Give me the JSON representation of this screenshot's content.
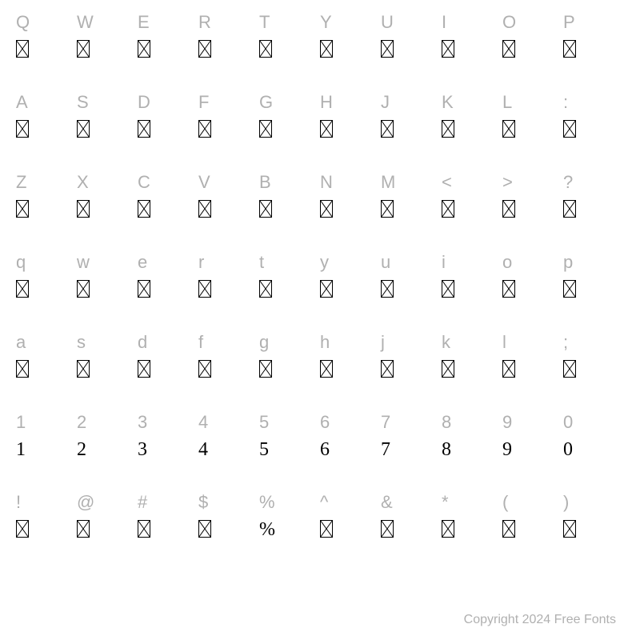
{
  "background_color": "#ffffff",
  "label_color": "#b0b0b0",
  "glyph_color": "#000000",
  "label_fontsize": 22,
  "glyph_fontsize": 24,
  "notdef_width": 16,
  "notdef_height": 22,
  "notdef_stroke": "#000000",
  "notdef_stroke_width": 1,
  "columns": 10,
  "rows": [
    [
      {
        "label": "Q",
        "glyph": null
      },
      {
        "label": "W",
        "glyph": null
      },
      {
        "label": "E",
        "glyph": null
      },
      {
        "label": "R",
        "glyph": null
      },
      {
        "label": "T",
        "glyph": null
      },
      {
        "label": "Y",
        "glyph": null
      },
      {
        "label": "U",
        "glyph": null
      },
      {
        "label": "I",
        "glyph": null
      },
      {
        "label": "O",
        "glyph": null
      },
      {
        "label": "P",
        "glyph": null
      }
    ],
    [
      {
        "label": "A",
        "glyph": null
      },
      {
        "label": "S",
        "glyph": null
      },
      {
        "label": "D",
        "glyph": null
      },
      {
        "label": "F",
        "glyph": null
      },
      {
        "label": "G",
        "glyph": null
      },
      {
        "label": "H",
        "glyph": null
      },
      {
        "label": "J",
        "glyph": null
      },
      {
        "label": "K",
        "glyph": null
      },
      {
        "label": "L",
        "glyph": null
      },
      {
        "label": ":",
        "glyph": null
      }
    ],
    [
      {
        "label": "Z",
        "glyph": null
      },
      {
        "label": "X",
        "glyph": null
      },
      {
        "label": "C",
        "glyph": null
      },
      {
        "label": "V",
        "glyph": null
      },
      {
        "label": "B",
        "glyph": null
      },
      {
        "label": "N",
        "glyph": null
      },
      {
        "label": "M",
        "glyph": null
      },
      {
        "label": "<",
        "glyph": null
      },
      {
        "label": ">",
        "glyph": null
      },
      {
        "label": "?",
        "glyph": null
      }
    ],
    [
      {
        "label": "q",
        "glyph": null
      },
      {
        "label": "w",
        "glyph": null
      },
      {
        "label": "e",
        "glyph": null
      },
      {
        "label": "r",
        "glyph": null
      },
      {
        "label": "t",
        "glyph": null
      },
      {
        "label": "y",
        "glyph": null
      },
      {
        "label": "u",
        "glyph": null
      },
      {
        "label": "i",
        "glyph": null
      },
      {
        "label": "o",
        "glyph": null
      },
      {
        "label": "p",
        "glyph": null
      }
    ],
    [
      {
        "label": "a",
        "glyph": null
      },
      {
        "label": "s",
        "glyph": null
      },
      {
        "label": "d",
        "glyph": null
      },
      {
        "label": "f",
        "glyph": null
      },
      {
        "label": "g",
        "glyph": null
      },
      {
        "label": "h",
        "glyph": null
      },
      {
        "label": "j",
        "glyph": null
      },
      {
        "label": "k",
        "glyph": null
      },
      {
        "label": "l",
        "glyph": null
      },
      {
        "label": ";",
        "glyph": null
      }
    ],
    [
      {
        "label": "1",
        "glyph": "1"
      },
      {
        "label": "2",
        "glyph": "2"
      },
      {
        "label": "3",
        "glyph": "3"
      },
      {
        "label": "4",
        "glyph": "4"
      },
      {
        "label": "5",
        "glyph": "5"
      },
      {
        "label": "6",
        "glyph": "6"
      },
      {
        "label": "7",
        "glyph": "7"
      },
      {
        "label": "8",
        "glyph": "8"
      },
      {
        "label": "9",
        "glyph": "9"
      },
      {
        "label": "0",
        "glyph": "0"
      }
    ],
    [
      {
        "label": "!",
        "glyph": null
      },
      {
        "label": "@",
        "glyph": null
      },
      {
        "label": "#",
        "glyph": null
      },
      {
        "label": "$",
        "glyph": null
      },
      {
        "label": "%",
        "glyph": "%"
      },
      {
        "label": "^",
        "glyph": null
      },
      {
        "label": "&",
        "glyph": null
      },
      {
        "label": "*",
        "glyph": null
      },
      {
        "label": "(",
        "glyph": null
      },
      {
        "label": ")",
        "glyph": null
      }
    ]
  ],
  "footer": "Copyright 2024 Free Fonts"
}
